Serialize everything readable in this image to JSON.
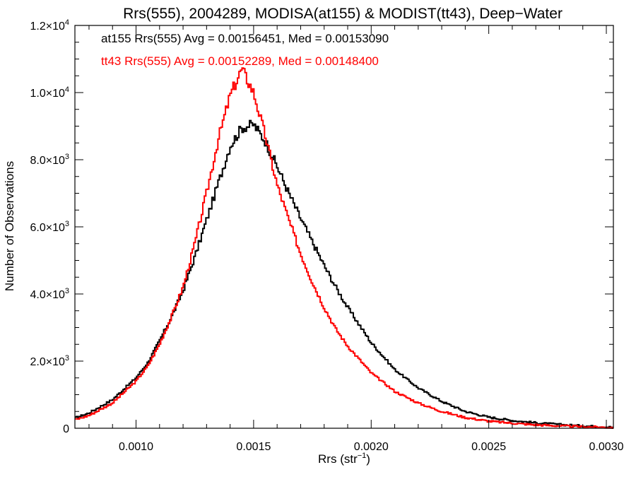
{
  "chart_data": {
    "type": "line",
    "step": true,
    "title": "Rrs(555), 2004289, MODISA(at155) & MODIST(tt43), Deep−Water",
    "xlabel": "Rrs (str",
    "xlabel_sup": "−1",
    "xlabel_end": ")",
    "ylabel": "Number of Observations",
    "xlim": [
      0.00074,
      0.00303
    ],
    "ylim": [
      0,
      12000
    ],
    "x_ticks": [
      0.001,
      0.0015,
      0.002,
      0.0025,
      0.003
    ],
    "x_tick_labels": [
      "0.0010",
      "0.0015",
      "0.0020",
      "0.0025",
      "0.0030"
    ],
    "y_ticks": [
      0,
      2000,
      4000,
      6000,
      8000,
      10000,
      12000
    ],
    "y_tick_labels": [
      {
        "base": "0",
        "sup": ""
      },
      {
        "base": "2.0×10",
        "sup": "3"
      },
      {
        "base": "4.0×10",
        "sup": "3"
      },
      {
        "base": "6.0×10",
        "sup": "3"
      },
      {
        "base": "8.0×10",
        "sup": "3"
      },
      {
        "base": "1.0×10",
        "sup": "4"
      },
      {
        "base": "1.2×10",
        "sup": "4"
      }
    ],
    "grid": false,
    "annotations": [
      {
        "text": "at155 Rrs(555) Avg = 0.00156451, Med = 0.00153090",
        "color": "#000000"
      },
      {
        "text": "tt43 Rrs(555) Avg = 0.00152289, Med = 0.00148400",
        "color": "#ff0000"
      }
    ],
    "series": [
      {
        "color": "#000000",
        "x": [
          0.00074,
          0.0008,
          0.0009,
          0.001,
          0.00105,
          0.0011,
          0.00115,
          0.0012,
          0.00125,
          0.0013,
          0.00135,
          0.0014,
          0.00145,
          0.0015,
          0.00155,
          0.0016,
          0.00165,
          0.0017,
          0.00175,
          0.0018,
          0.00185,
          0.0019,
          0.002,
          0.0021,
          0.0022,
          0.0023,
          0.0024,
          0.0025,
          0.0026,
          0.0027,
          0.0028,
          0.0029,
          0.00303
        ],
        "y": [
          300,
          450,
          850,
          1500,
          1950,
          2600,
          3300,
          4100,
          5100,
          6200,
          7300,
          8400,
          8950,
          9050,
          8550,
          7800,
          7000,
          6250,
          5550,
          4850,
          4200,
          3600,
          2550,
          1750,
          1200,
          800,
          500,
          330,
          230,
          160,
          110,
          70,
          30
        ]
      },
      {
        "color": "#ff0000",
        "x": [
          0.00074,
          0.0008,
          0.0009,
          0.001,
          0.00105,
          0.0011,
          0.00115,
          0.0012,
          0.00125,
          0.0013,
          0.00135,
          0.0014,
          0.00145,
          0.0015,
          0.00155,
          0.0016,
          0.00165,
          0.0017,
          0.00175,
          0.0018,
          0.00185,
          0.0019,
          0.002,
          0.0021,
          0.0022,
          0.0023,
          0.0024,
          0.0025,
          0.0026,
          0.0027,
          0.0028,
          0.0029,
          0.00303
        ],
        "y": [
          250,
          380,
          750,
          1400,
          1850,
          2500,
          3300,
          4200,
          5500,
          7000,
          8600,
          9900,
          10700,
          10000,
          8700,
          7250,
          6200,
          5200,
          4350,
          3600,
          2950,
          2450,
          1650,
          1100,
          750,
          500,
          320,
          210,
          150,
          100,
          70,
          45,
          20
        ]
      }
    ]
  }
}
